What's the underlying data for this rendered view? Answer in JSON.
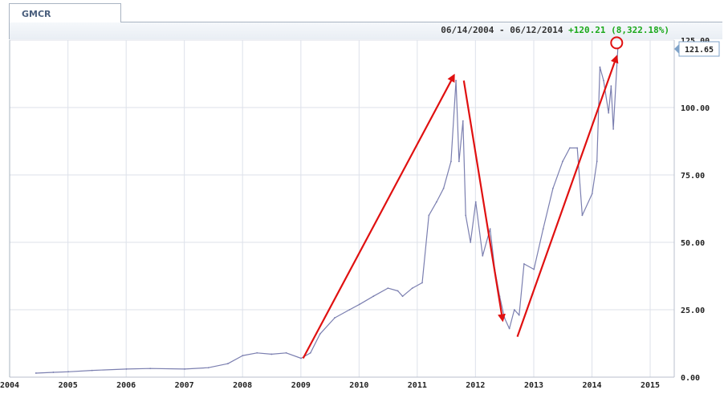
{
  "tab": {
    "label": "GMCR"
  },
  "header": {
    "date_range": "06/14/2004 - 06/12/2014",
    "change": "+120.21 (8,322.18%)"
  },
  "last_price_label": "121.65",
  "colors": {
    "line": "#7b7fb0",
    "grid": "#dde1ea",
    "arrow": "#e01010",
    "change_positive": "#19a819",
    "frame": "#a9b4c2"
  },
  "annotations": {
    "arrows": [
      {
        "from": [
          "2009-01-15",
          7
        ],
        "to": [
          "2011-08-20",
          112
        ]
      },
      {
        "from": [
          "2011-10-20",
          110
        ],
        "to": [
          "2012-06-20",
          21
        ]
      },
      {
        "from": [
          "2012-09-20",
          15
        ],
        "to": [
          "2014-06-05",
          119
        ]
      }
    ],
    "circle": {
      "at": [
        "2014-06-05",
        124
      ]
    }
  },
  "chart_data": {
    "type": "line",
    "title": "",
    "xlabel": "",
    "ylabel": "",
    "x_range": [
      "2004-01-01",
      "2015-06-01"
    ],
    "ylim": [
      0,
      125
    ],
    "x_ticks": [
      "2004",
      "2005",
      "2006",
      "2007",
      "2008",
      "2009",
      "2010",
      "2011",
      "2012",
      "2013",
      "2014",
      "2015"
    ],
    "y_ticks": [
      "0.00",
      "25.00",
      "50.00",
      "75.00",
      "100.00",
      "125.00"
    ],
    "grid": true,
    "series": [
      {
        "x": [
          "2004-06-14",
          "2004-10-01",
          "2005-01-03",
          "2005-06-01",
          "2006-01-03",
          "2006-06-01",
          "2007-01-03",
          "2007-06-01",
          "2007-10-01",
          "2008-01-02",
          "2008-04-01",
          "2008-07-01",
          "2008-10-01",
          "2009-01-02",
          "2009-03-02",
          "2009-05-01",
          "2009-08-01",
          "2009-11-02",
          "2010-01-04",
          "2010-04-01",
          "2010-07-01",
          "2010-09-01",
          "2010-10-01",
          "2010-12-01",
          "2011-02-01",
          "2011-03-15",
          "2011-05-02",
          "2011-06-15",
          "2011-08-01",
          "2011-09-01",
          "2011-09-20",
          "2011-10-15",
          "2011-11-01",
          "2011-12-01",
          "2012-01-03",
          "2012-02-15",
          "2012-04-02",
          "2012-05-01",
          "2012-06-01",
          "2012-07-01",
          "2012-08-01",
          "2012-09-01",
          "2012-10-01",
          "2012-11-01",
          "2013-01-02",
          "2013-03-01",
          "2013-05-01",
          "2013-07-01",
          "2013-08-15",
          "2013-10-01",
          "2013-11-01",
          "2014-01-02",
          "2014-02-01",
          "2014-02-20",
          "2014-03-15",
          "2014-04-15",
          "2014-05-01",
          "2014-05-15",
          "2014-06-12"
        ],
        "values": [
          1.5,
          1.8,
          2.0,
          2.5,
          3.0,
          3.2,
          3.0,
          3.5,
          5.0,
          8.0,
          9.0,
          8.5,
          9.0,
          7.0,
          9.0,
          16.0,
          22.0,
          25.0,
          27.0,
          30.0,
          33.0,
          32.0,
          30.0,
          33.0,
          35.0,
          60.0,
          65.0,
          70.0,
          80.0,
          110.0,
          80.0,
          95.0,
          60.0,
          50.0,
          65.0,
          45.0,
          55.0,
          40.0,
          30.0,
          22.0,
          18.0,
          25.0,
          23.0,
          42.0,
          40.0,
          55.0,
          70.0,
          80.0,
          85.0,
          85.0,
          60.0,
          68.0,
          80.0,
          115.0,
          110.0,
          98.0,
          108.0,
          92.0,
          121.65
        ]
      }
    ]
  }
}
